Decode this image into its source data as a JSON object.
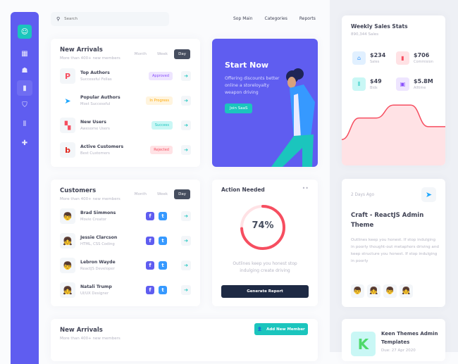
{
  "search": {
    "placeholder": "Search"
  },
  "nav": [
    "Sop Main",
    "Categories",
    "Reports"
  ],
  "new_arrivals": {
    "title": "New Arrivals",
    "subtitle": "More than 400+ new members",
    "tabs": [
      "Month",
      "Week",
      "Day"
    ],
    "active_tab": "Day",
    "rows": [
      {
        "name": "Top Authors",
        "sub": "Successful Fellas",
        "status": "Approved",
        "status_color": "#8950fc",
        "status_bg": "#eee5ff",
        "icon": "p-logo-icon",
        "color": "#f64e60"
      },
      {
        "name": "Popular Authors",
        "sub": "Most Successful",
        "status": "In Progress",
        "status_color": "#ffa800",
        "status_bg": "#fff4de",
        "icon": "paper-plane-icon",
        "color": "#1ea7fd"
      },
      {
        "name": "New Users",
        "sub": "Awesome Users",
        "status": "Success",
        "status_color": "#1bc5bd",
        "status_bg": "#c9f7f5",
        "icon": "puzzle-logo-icon",
        "color": "#f64e60"
      },
      {
        "name": "Active Customers",
        "sub": "Best Customers",
        "status": "Rejected",
        "status_color": "#f64e60",
        "status_bg": "#ffe2e5",
        "icon": "b-logo-icon",
        "color": "#e1251b"
      }
    ]
  },
  "promo": {
    "title": "Start Now",
    "text": "Offering discounts better online a storeloyalty weapon driving",
    "button": "Join SaaS"
  },
  "customers": {
    "title": "Customers",
    "subtitle": "More than 400+ new members",
    "tabs": [
      "Month",
      "Week",
      "Day"
    ],
    "active_tab": "Day",
    "rows": [
      {
        "name": "Brad Simmons",
        "sub": "Movie Creator"
      },
      {
        "name": "Jessie Clarcson",
        "sub": "HTML, CSS Coding"
      },
      {
        "name": "Lebron Wayde",
        "sub": "ReactJS Developer"
      },
      {
        "name": "Natali Trump",
        "sub": "UI/UX Designer"
      }
    ]
  },
  "action": {
    "title": "Action Needed",
    "percent": 74,
    "percent_label": "74%",
    "text": "Outlines keep you honest stop indulging create driving",
    "button": "Generate Report"
  },
  "new_arrivals2": {
    "title": "New Arrivals",
    "subtitle": "More than 400+ new members",
    "button": "Add New Member"
  },
  "weekly": {
    "title": "Weekly Sales Stats",
    "subtitle": "890,344 Sales",
    "stats": [
      {
        "value": "$234",
        "label": "Sales",
        "color": "#3699ff",
        "bg": "#e1f0ff",
        "icon": "basket-icon"
      },
      {
        "value": "$706",
        "label": "Commision",
        "color": "#f64e60",
        "bg": "#ffe2e5",
        "icon": "bar-chart-icon"
      },
      {
        "value": "$49",
        "label": "Bids",
        "color": "#1bc5bd",
        "bg": "#c9f7f5",
        "icon": "library-icon"
      },
      {
        "value": "$5.8M",
        "label": "Alltime",
        "color": "#8950fc",
        "bg": "#eee5ff",
        "icon": "frame-icon"
      }
    ],
    "chart_values": [
      30,
      55,
      55,
      70,
      70,
      45,
      45
    ]
  },
  "craft": {
    "date": "2 Days Ago",
    "title": "Craft - ReactJS Admin Theme",
    "text": "Outlines keep you honest. If stop indulging in poorly thought-out metaphors driving and keep structure you honest. If stop  indulging in poorly"
  },
  "keen": {
    "title": "Keen Themes Admin Templates",
    "due": "Due: 27 Apr 2020"
  },
  "colors": {
    "sidebar": "#5f5df0",
    "accent": "#1bc5bd",
    "danger": "#f64e60",
    "dark": "#1e2a44"
  }
}
